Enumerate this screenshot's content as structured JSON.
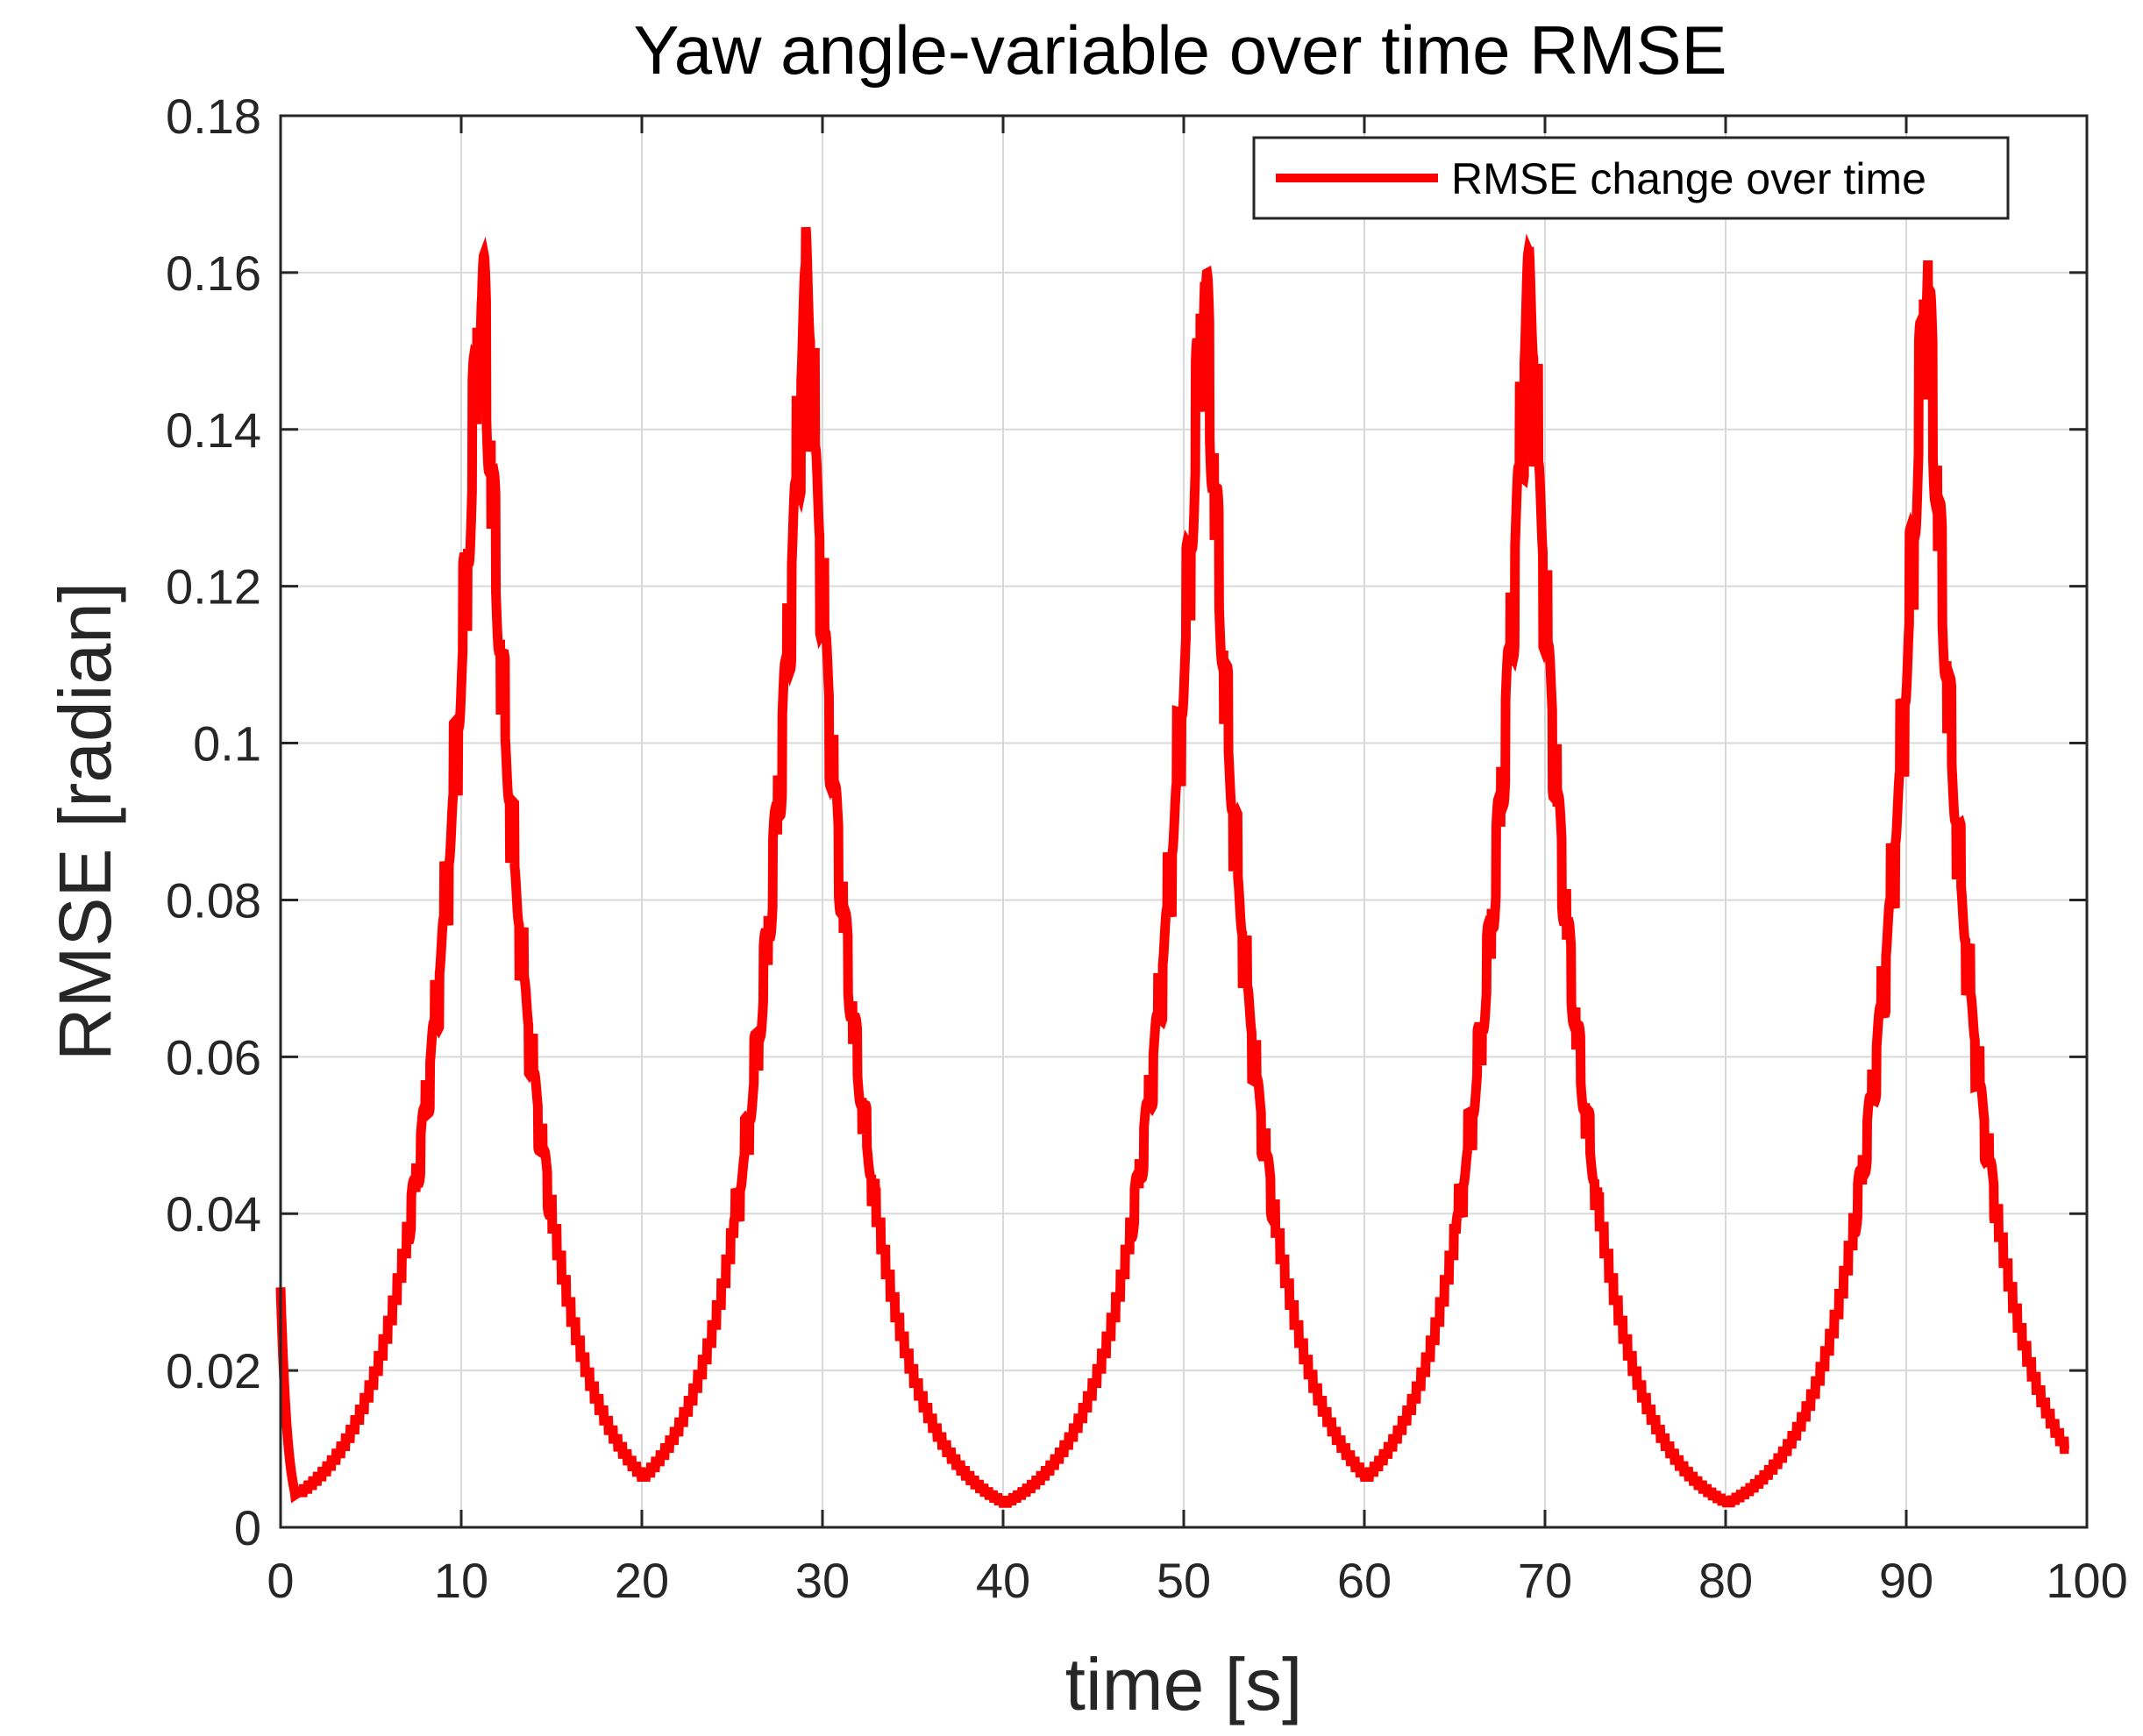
{
  "chart_data": {
    "type": "line",
    "title": "Yaw angle-variable over time RMSE",
    "xlabel": "time [s]",
    "ylabel": "RMSE [radian]",
    "xlim": [
      0,
      100
    ],
    "ylim": [
      0,
      0.18
    ],
    "xticks": [
      0,
      10,
      20,
      30,
      40,
      50,
      60,
      70,
      80,
      90,
      100
    ],
    "yticks": [
      0,
      0.02,
      0.04,
      0.06,
      0.08,
      0.1,
      0.12,
      0.14,
      0.16,
      0.18
    ],
    "xtick_labels": [
      "0",
      "10",
      "20",
      "30",
      "40",
      "50",
      "60",
      "70",
      "80",
      "90",
      "100"
    ],
    "ytick_labels": [
      "0",
      "0.02",
      "0.04",
      "0.06",
      "0.08",
      "0.1",
      "0.12",
      "0.14",
      "0.16",
      "0.18"
    ],
    "grid": true,
    "legend": {
      "position": "top-right"
    },
    "series": [
      {
        "name": "RMSE change over time",
        "color": "#ff0000",
        "x_range": [
          0,
          99
        ],
        "peaks": [
          {
            "x": 11,
            "y": 0.163
          },
          {
            "x": 29,
            "y": 0.163
          },
          {
            "x": 51,
            "y": 0.163
          },
          {
            "x": 69,
            "y": 0.163
          },
          {
            "x": 91,
            "y": 0.163
          }
        ],
        "minima": [
          {
            "x": 0,
            "y": 0.03
          },
          {
            "x": 1,
            "y": 0.001
          },
          {
            "x": 20,
            "y": 0
          },
          {
            "x": 40,
            "y": 0
          },
          {
            "x": 60,
            "y": 0
          },
          {
            "x": 80,
            "y": 0
          },
          {
            "x": 99,
            "y": 0.001
          }
        ]
      }
    ]
  }
}
